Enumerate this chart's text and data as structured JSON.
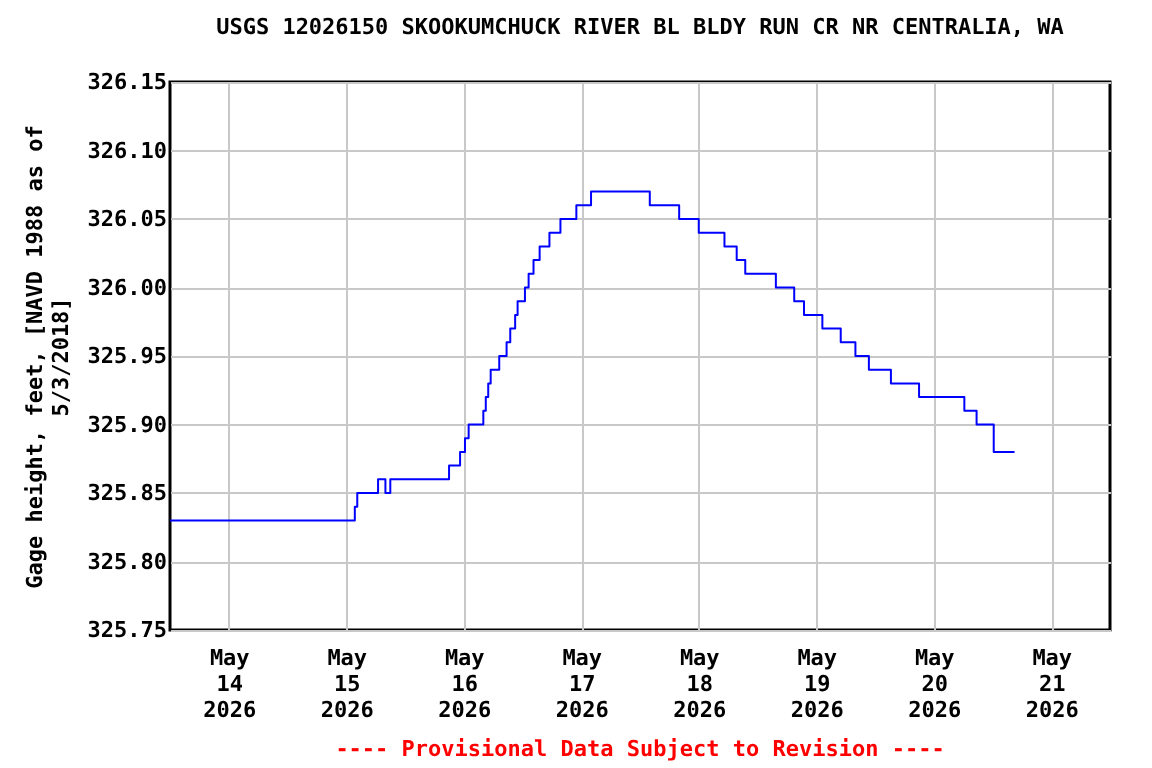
{
  "chart_data": {
    "type": "step",
    "title": "USGS 12026150 SKOOKUMCHUCK RIVER BL BLDY RUN CR NR CENTRALIA, WA",
    "ylabel": "Gage height, feet, [NAVD 1988 as of 5/3/2018]",
    "annotations": [
      "---- Provisional Data Subject to Revision ----"
    ],
    "x": [
      "2026-05-13T12:00",
      "2026-05-15T01:45",
      "2026-05-15T02:15",
      "2026-05-15T06:30",
      "2026-05-15T08:00",
      "2026-05-15T09:00",
      "2026-05-15T21:00",
      "2026-05-15T23:15",
      "2026-05-16T00:15",
      "2026-05-16T01:00",
      "2026-05-16T04:00",
      "2026-05-16T04:30",
      "2026-05-16T05:00",
      "2026-05-16T05:30",
      "2026-05-16T07:15",
      "2026-05-16T08:45",
      "2026-05-16T09:30",
      "2026-05-16T10:30",
      "2026-05-16T11:00",
      "2026-05-16T12:30",
      "2026-05-16T13:15",
      "2026-05-16T14:15",
      "2026-05-16T15:30",
      "2026-05-16T17:30",
      "2026-05-16T19:45",
      "2026-05-16T23:00",
      "2026-05-17T02:00",
      "2026-05-17T14:00",
      "2026-05-17T20:00",
      "2026-05-18T00:00",
      "2026-05-18T05:15",
      "2026-05-18T07:45",
      "2026-05-18T09:30",
      "2026-05-18T15:45",
      "2026-05-18T19:30",
      "2026-05-18T21:30",
      "2026-05-19T01:15",
      "2026-05-19T05:00",
      "2026-05-19T08:00",
      "2026-05-19T10:45",
      "2026-05-19T15:15",
      "2026-05-19T21:00",
      "2026-05-20T06:15",
      "2026-05-20T08:45",
      "2026-05-20T12:15",
      "2026-05-20T16:30"
    ],
    "series": [
      {
        "color": "#0000ff",
        "values": [
          325.83,
          325.84,
          325.85,
          325.86,
          325.85,
          325.86,
          325.87,
          325.88,
          325.89,
          325.9,
          325.91,
          325.92,
          325.93,
          325.94,
          325.95,
          325.96,
          325.97,
          325.98,
          325.99,
          326.0,
          326.01,
          326.02,
          326.03,
          326.04,
          326.05,
          326.06,
          326.07,
          326.06,
          326.05,
          326.04,
          326.03,
          326.02,
          326.01,
          326.0,
          325.99,
          325.98,
          325.97,
          325.96,
          325.95,
          325.94,
          325.93,
          325.92,
          325.91,
          325.9,
          325.88,
          325.88
        ]
      }
    ],
    "xlim": [
      "2026-05-13T12:00",
      "2026-05-21T12:00"
    ],
    "xticks": [
      {
        "value": "2026-05-14T00:00",
        "label": "May 14 2026"
      },
      {
        "value": "2026-05-15T00:00",
        "label": "May 15 2026"
      },
      {
        "value": "2026-05-16T00:00",
        "label": "May 16 2026"
      },
      {
        "value": "2026-05-17T00:00",
        "label": "May 17 2026"
      },
      {
        "value": "2026-05-18T00:00",
        "label": "May 18 2026"
      },
      {
        "value": "2026-05-19T00:00",
        "label": "May 19 2026"
      },
      {
        "value": "2026-05-20T00:00",
        "label": "May 20 2026"
      },
      {
        "value": "2026-05-21T00:00",
        "label": "May 21 2026"
      }
    ],
    "ylim": [
      325.75,
      326.15
    ],
    "yticks": [
      325.75,
      {
        "value": 325.8,
        "label": "325.80"
      },
      325.85,
      {
        "value": 325.9,
        "label": "325.90"
      },
      325.95,
      {
        "value": 326.0,
        "label": "326.00"
      },
      326.05,
      {
        "value": 326.1,
        "label": "326.10"
      },
      326.15
    ],
    "grid": true,
    "marker": "none",
    "line_style": "solid"
  }
}
